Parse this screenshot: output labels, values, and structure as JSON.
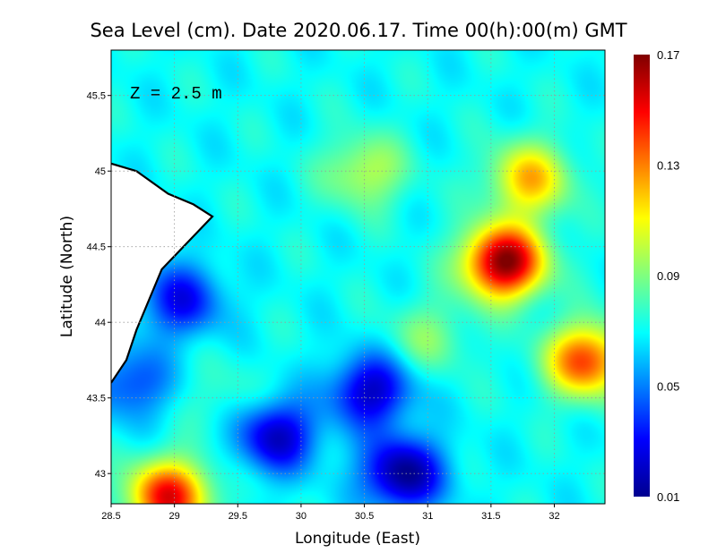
{
  "chart_data": {
    "type": "heatmap",
    "title": "Sea Level (cm). Date 2020.06.17. Time 00(h):00(m) GMT",
    "xlabel": "Longitude (East)",
    "ylabel": "Latitude (North)",
    "annotation": "Z = 2.5 m",
    "xlim": [
      28.5,
      32.4
    ],
    "ylim": [
      42.8,
      45.8
    ],
    "x_ticks": [
      "28.5",
      "29",
      "29.5",
      "30",
      "30.5",
      "31",
      "31.5",
      "32"
    ],
    "y_ticks": [
      "43",
      "43.5",
      "44",
      "44.5",
      "45",
      "45.5"
    ],
    "colorbar": {
      "min": 0.01,
      "max": 0.17,
      "tick_labels": [
        "0.17",
        "0.13",
        "0.09",
        "0.05",
        "0.01"
      ]
    },
    "grid": true,
    "background_level": 0.07,
    "features": [
      {
        "lon": 31.6,
        "lat": 44.4,
        "value": 0.17
      },
      {
        "lon": 31.8,
        "lat": 44.95,
        "value": 0.12
      },
      {
        "lon": 32.25,
        "lat": 43.75,
        "value": 0.14
      },
      {
        "lon": 28.95,
        "lat": 42.85,
        "value": 0.15
      },
      {
        "lon": 30.55,
        "lat": 43.55,
        "value": 0.02
      },
      {
        "lon": 30.8,
        "lat": 43.0,
        "value": 0.01
      },
      {
        "lon": 29.8,
        "lat": 43.25,
        "value": 0.02
      },
      {
        "lon": 29.05,
        "lat": 44.15,
        "value": 0.03
      },
      {
        "lon": 28.65,
        "lat": 43.6,
        "value": 0.04
      },
      {
        "lon": 30.5,
        "lat": 45.0,
        "value": 0.1
      },
      {
        "lon": 31.0,
        "lat": 43.9,
        "value": 0.09
      },
      {
        "lon": 29.4,
        "lat": 43.5,
        "value": 0.08
      }
    ],
    "land": [
      [
        28.5,
        45.8
      ],
      [
        28.5,
        45.05
      ],
      [
        28.7,
        45.0
      ],
      [
        28.95,
        44.85
      ],
      [
        29.15,
        44.78
      ],
      [
        29.3,
        44.7
      ],
      [
        28.9,
        44.35
      ],
      [
        28.7,
        43.95
      ],
      [
        28.62,
        43.75
      ],
      [
        28.5,
        43.6
      ]
    ]
  },
  "colors": {
    "land": "#ffffff",
    "coast": "#000000",
    "grid": "#9a9a9a"
  }
}
